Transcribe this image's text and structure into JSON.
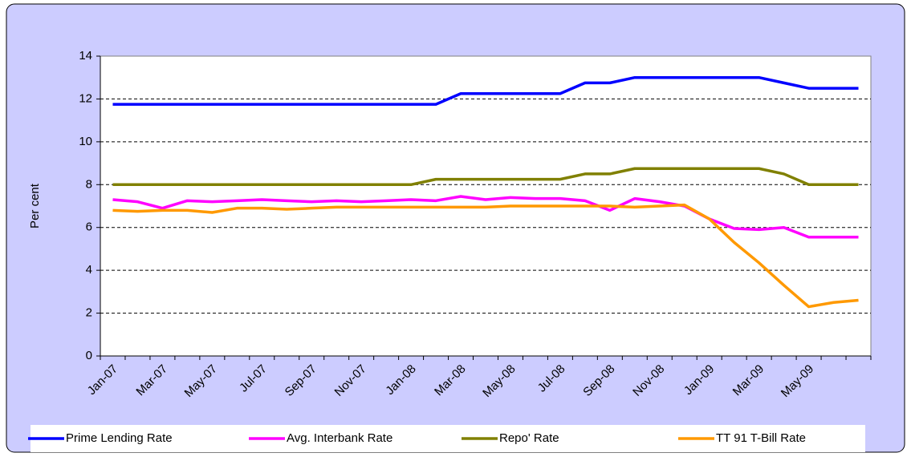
{
  "chart_data": {
    "type": "line",
    "ylabel": "Per cent",
    "categories": [
      "Jan-07",
      null,
      "Mar-07",
      null,
      "May-07",
      null,
      "Jul-07",
      null,
      "Sep-07",
      null,
      "Nov-07",
      null,
      "Jan-08",
      null,
      "Mar-08",
      null,
      "May-08",
      null,
      "Jul-08",
      null,
      "Sep-08",
      null,
      "Nov-08",
      null,
      "Jan-09",
      null,
      "Mar-09",
      null,
      "May-09",
      null,
      null
    ],
    "series": [
      {
        "name": "Prime Lending Rate",
        "color": "#0000ff",
        "values": [
          11.75,
          11.75,
          11.75,
          11.75,
          11.75,
          11.75,
          11.75,
          11.75,
          11.75,
          11.75,
          11.75,
          11.75,
          11.75,
          11.75,
          12.25,
          12.25,
          12.25,
          12.25,
          12.25,
          12.75,
          12.75,
          13,
          13,
          13,
          13,
          13,
          13,
          12.75,
          12.5,
          12.5,
          12.5
        ]
      },
      {
        "name": "Avg. Interbank Rate",
        "color": "#ff00ff",
        "values": [
          7.3,
          7.2,
          6.9,
          7.25,
          7.2,
          7.25,
          7.3,
          7.25,
          7.2,
          7.25,
          7.2,
          7.25,
          7.3,
          7.25,
          7.45,
          7.3,
          7.4,
          7.35,
          7.35,
          7.25,
          6.8,
          7.35,
          7.2,
          7.0,
          6.4,
          5.95,
          5.9,
          6.0,
          5.55,
          5.55,
          5.55
        ]
      },
      {
        "name": "Repo' Rate",
        "color": "#808000",
        "values": [
          8,
          8,
          8,
          8,
          8,
          8,
          8,
          8,
          8,
          8,
          8,
          8,
          8,
          8.25,
          8.25,
          8.25,
          8.25,
          8.25,
          8.25,
          8.5,
          8.5,
          8.75,
          8.75,
          8.75,
          8.75,
          8.75,
          8.75,
          8.5,
          8,
          8,
          8
        ]
      },
      {
        "name": "TT 91 T-Bill Rate",
        "color": "#ff9900",
        "values": [
          6.8,
          6.75,
          6.8,
          6.8,
          6.7,
          6.9,
          6.9,
          6.85,
          6.9,
          6.95,
          6.95,
          6.95,
          6.95,
          6.95,
          6.95,
          6.95,
          7.0,
          7.0,
          7.0,
          7.0,
          7.0,
          6.95,
          7.0,
          7.05,
          6.4,
          5.3,
          4.35,
          3.3,
          2.3,
          2.5,
          2.6
        ]
      }
    ],
    "ylim": [
      0,
      14
    ],
    "yticks": [
      0,
      2,
      4,
      6,
      8,
      10,
      12,
      14
    ],
    "grid": true,
    "legend": "bottom"
  }
}
